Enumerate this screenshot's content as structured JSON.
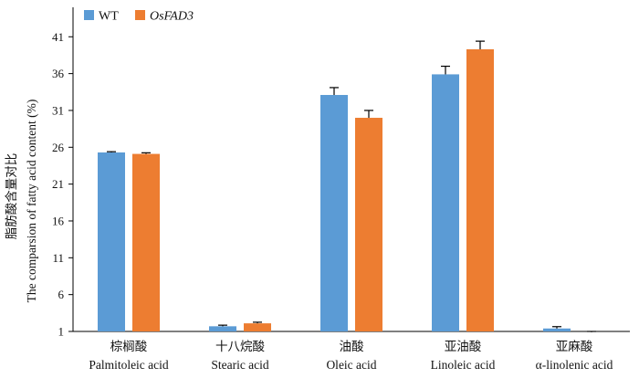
{
  "chart_data": {
    "type": "bar",
    "ylabel_cn": "脂肪酸含量对比",
    "ylabel_en": "The comparsion of fatty acid content (%)",
    "categories": [
      {
        "cn": "棕榈酸",
        "en": "Palmitoleic acid"
      },
      {
        "cn": "十八烷酸",
        "en": "Stearic acid"
      },
      {
        "cn": "油酸",
        "en": "Oleic acid"
      },
      {
        "cn": "亚油酸",
        "en": "Linoleic acid"
      },
      {
        "cn": "亚麻酸",
        "en": "α-linolenic acid"
      }
    ],
    "series": [
      {
        "name": "WT",
        "color": "#5B9BD5",
        "italic": false,
        "values": [
          25.3,
          1.7,
          33.1,
          35.9,
          1.4
        ],
        "errors": [
          0.1,
          0.15,
          1.0,
          1.1,
          0.25
        ]
      },
      {
        "name": "OsFAD3",
        "color": "#ED7D31",
        "italic": true,
        "values": [
          25.1,
          2.1,
          30.0,
          39.3,
          0.9
        ],
        "errors": [
          0.15,
          0.15,
          1.0,
          1.1,
          0.1
        ]
      }
    ],
    "yticks": [
      1,
      6,
      11,
      16,
      21,
      26,
      31,
      36,
      41
    ],
    "ylim": [
      1,
      45
    ],
    "legend_position": "top-left",
    "grid": false
  }
}
